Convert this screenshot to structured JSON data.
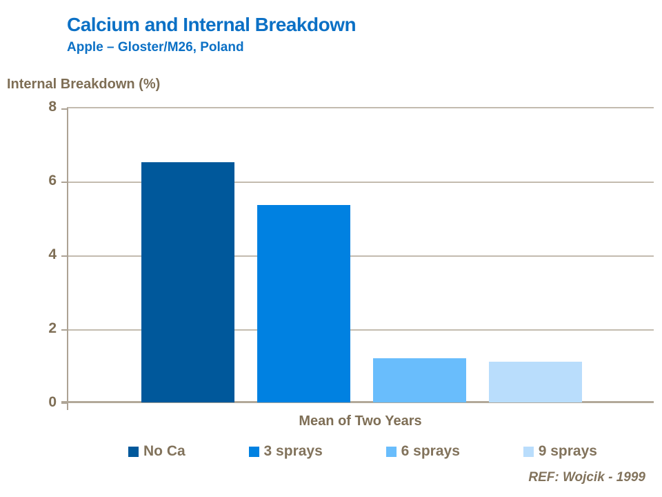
{
  "slide": {
    "title": "Calcium and Internal Breakdown",
    "subtitle": "Apple – Gloster/M26, Poland",
    "reference": "REF: Wojcik - 1999"
  },
  "chart_data": {
    "type": "bar",
    "title": "Calcium and Internal Breakdown — Apple, Gloster/M26, Poland",
    "axis_title": "Internal Breakdown (%)",
    "xlabel": "",
    "ylabel": "Internal Breakdown (%)",
    "categories": [
      "Mean of Two Years"
    ],
    "series": [
      {
        "name": "No Ca",
        "color": "#00589b",
        "values": [
          6.5
        ]
      },
      {
        "name": "3 sprays",
        "color": "#0081e1",
        "values": [
          5.35
        ]
      },
      {
        "name": "6 sprays",
        "color": "#69bdfc",
        "values": [
          1.2
        ]
      },
      {
        "name": "9 sprays",
        "color": "#b9ddfc",
        "values": [
          1.1
        ]
      }
    ],
    "ylim": [
      0,
      8
    ],
    "yticks": [
      0,
      2,
      4,
      6,
      8
    ],
    "grid": true,
    "legend_position": "bottom"
  },
  "colors": {
    "title_blue": "#0b70c5",
    "axis_text_brown": "#7e6e55",
    "legend_text_brown": "#82735c",
    "gridline": "#c3bbaf",
    "axis_line": "#aca294"
  }
}
